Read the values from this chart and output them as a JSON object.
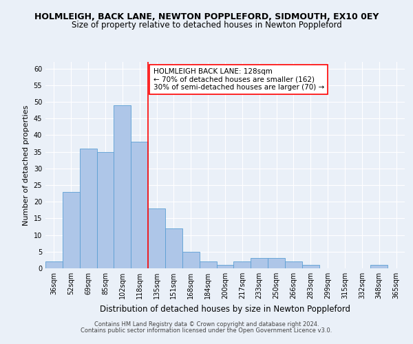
{
  "title": "HOLMLEIGH, BACK LANE, NEWTON POPPLEFORD, SIDMOUTH, EX10 0EY",
  "subtitle": "Size of property relative to detached houses in Newton Poppleford",
  "xlabel": "Distribution of detached houses by size in Newton Poppleford",
  "ylabel": "Number of detached properties",
  "categories": [
    "36sqm",
    "52sqm",
    "69sqm",
    "85sqm",
    "102sqm",
    "118sqm",
    "135sqm",
    "151sqm",
    "168sqm",
    "184sqm",
    "200sqm",
    "217sqm",
    "233sqm",
    "250sqm",
    "266sqm",
    "283sqm",
    "299sqm",
    "315sqm",
    "332sqm",
    "348sqm",
    "365sqm"
  ],
  "values": [
    2,
    23,
    36,
    35,
    49,
    38,
    18,
    12,
    5,
    2,
    1,
    2,
    3,
    3,
    2,
    1,
    0,
    0,
    0,
    1,
    0
  ],
  "bar_color": "#aec6e8",
  "bar_edge_color": "#5a9fd4",
  "bar_edge_width": 0.6,
  "red_line_x": 5.5,
  "annotation_line1": "HOLMLEIGH BACK LANE: 128sqm",
  "annotation_line2": "← 70% of detached houses are smaller (162)",
  "annotation_line3": "30% of semi-detached houses are larger (70) →",
  "annotation_box_color": "white",
  "annotation_box_edge_color": "red",
  "ylim": [
    0,
    62
  ],
  "yticks": [
    0,
    5,
    10,
    15,
    20,
    25,
    30,
    35,
    40,
    45,
    50,
    55,
    60
  ],
  "footnote1": "Contains HM Land Registry data © Crown copyright and database right 2024.",
  "footnote2": "Contains public sector information licensed under the Open Government Licence v3.0.",
  "bg_color": "#eaf0f8",
  "grid_color": "#ffffff",
  "title_fontsize": 9,
  "subtitle_fontsize": 8.5,
  "ylabel_fontsize": 8,
  "xlabel_fontsize": 8.5,
  "tick_fontsize": 7,
  "annotation_fontsize": 7.5,
  "footnote_fontsize": 6
}
